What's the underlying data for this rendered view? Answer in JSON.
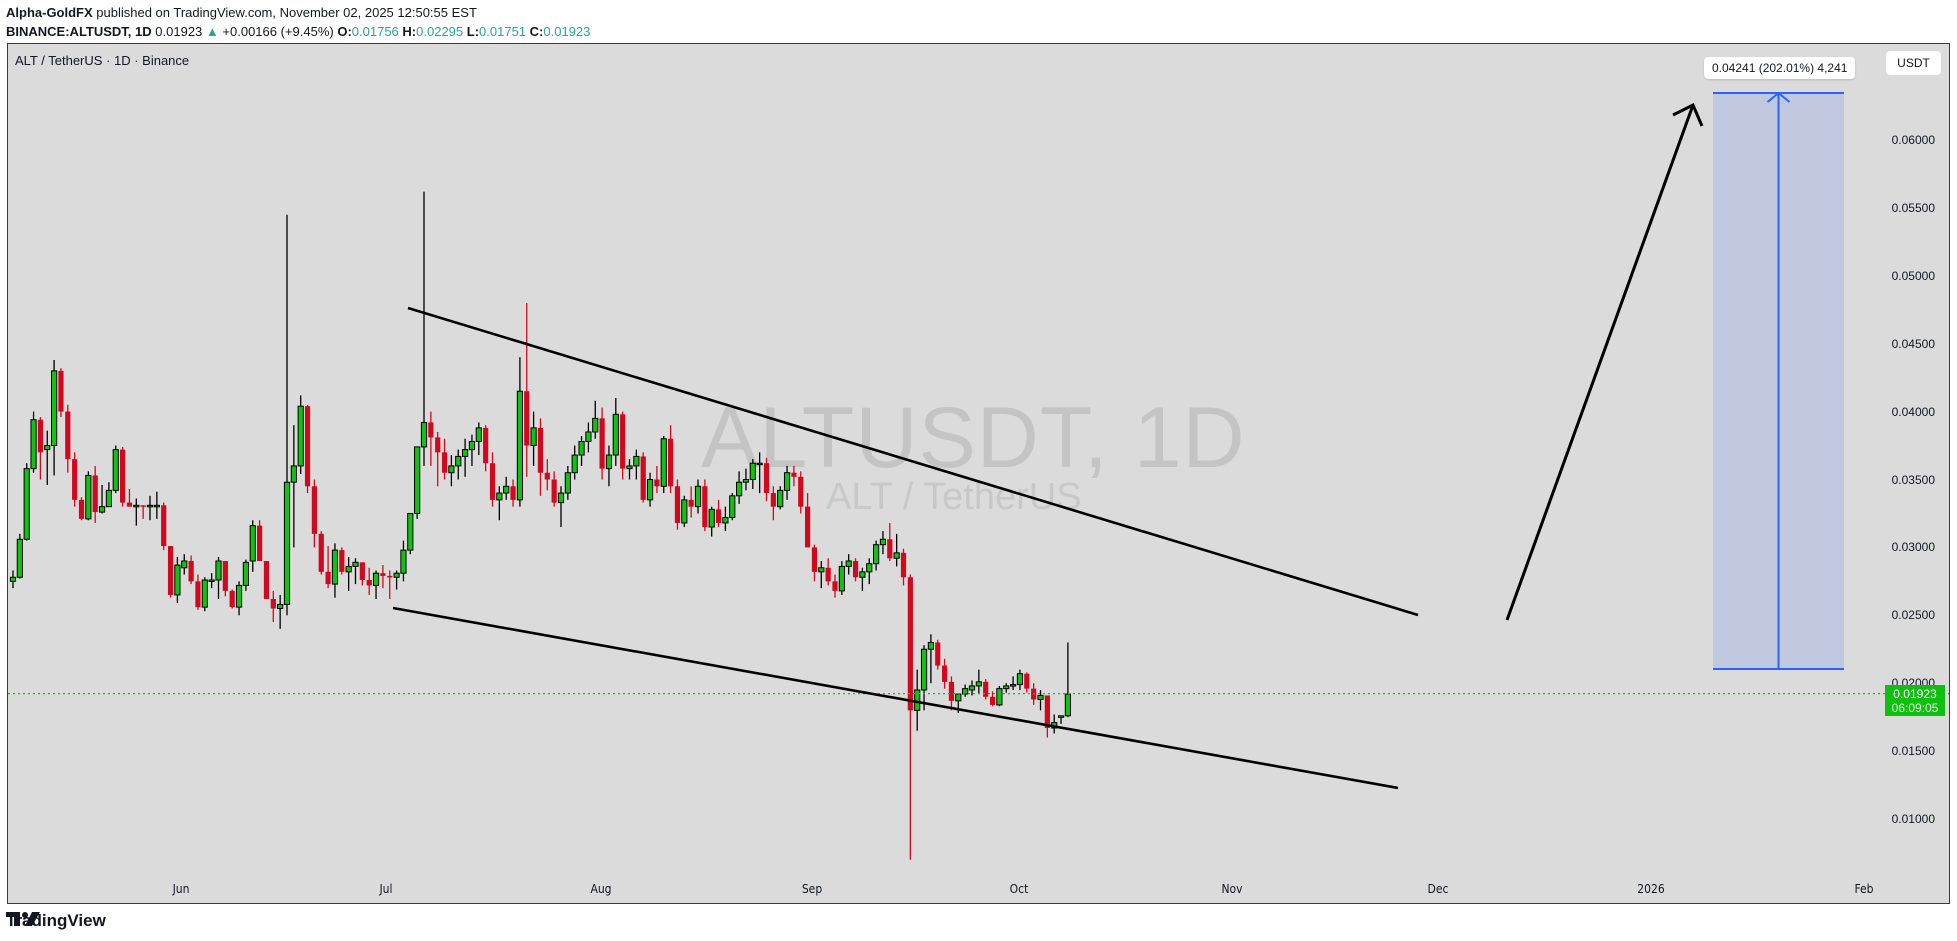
{
  "header": {
    "author": "Alpha-GoldFX",
    "published_text": " published on TradingView.com, November 02, 2025 12:50:55 EST",
    "symbol_line": "BINANCE:ALTUSDT, 1D",
    "last": "0.01923",
    "change_arrow": "▲",
    "change": "+0.00166 (+9.45%)",
    "o_label": "O:",
    "o": "0.01756",
    "h_label": "H:",
    "h": "0.02295",
    "l_label": "L:",
    "l": "0.01751",
    "c_label": "C:",
    "c": "0.01923"
  },
  "chart": {
    "symbol_title": "ALT / TetherUS · 1D · Binance",
    "currency_button": "USDT",
    "watermark_main": "ALTUSDT, 1D",
    "watermark_sub": "ALT / TetherUS",
    "price_tag": {
      "price": "0.01923",
      "countdown": "06:09:05"
    },
    "measure_label": "0.04241 (202.01%) 4,241",
    "colors": {
      "background": "#dbdbdb",
      "up": "#12c212",
      "down": "#d1091e",
      "outline": "#000000",
      "measure_fill": "#c0c8e0",
      "measure_line": "#2962ff",
      "price_line": "#10c010"
    }
  },
  "footer": {
    "brand": "TradingView"
  },
  "chart_data": {
    "type": "candlestick",
    "title": "ALT / TetherUS · 1D · Binance",
    "ylabel": "USDT",
    "xlabel": "",
    "ylim": [
      0.0055,
      0.068
    ],
    "y_ticks": [
      "0.06000",
      "0.05500",
      "0.05000",
      "0.04500",
      "0.04000",
      "0.03500",
      "0.03000",
      "0.02500",
      "0.02000",
      "0.01500",
      "0.01000"
    ],
    "x_ticks": [
      "Jun",
      "Jul",
      "Aug",
      "Sep",
      "Oct",
      "Nov",
      "Dec",
      "2026",
      "Feb"
    ],
    "start_date": "2025-05-07",
    "interval": "1D",
    "ohlc": [
      [
        0.0275,
        0.0283,
        0.027,
        0.0278
      ],
      [
        0.0278,
        0.031,
        0.0277,
        0.0306
      ],
      [
        0.0306,
        0.0362,
        0.0305,
        0.0358
      ],
      [
        0.0358,
        0.04,
        0.0355,
        0.0394
      ],
      [
        0.0394,
        0.0396,
        0.035,
        0.037
      ],
      [
        0.0372,
        0.0386,
        0.0346,
        0.0375
      ],
      [
        0.0375,
        0.0438,
        0.0353,
        0.043
      ],
      [
        0.043,
        0.0432,
        0.0396,
        0.04
      ],
      [
        0.04,
        0.0405,
        0.0355,
        0.0365
      ],
      [
        0.0365,
        0.037,
        0.033,
        0.0335
      ],
      [
        0.0335,
        0.0337,
        0.032,
        0.0321
      ],
      [
        0.0321,
        0.0356,
        0.032,
        0.0353
      ],
      [
        0.0353,
        0.036,
        0.0318,
        0.0326
      ],
      [
        0.0326,
        0.0346,
        0.0325,
        0.033
      ],
      [
        0.033,
        0.0348,
        0.0332,
        0.0342
      ],
      [
        0.0342,
        0.0375,
        0.034,
        0.0372
      ],
      [
        0.0372,
        0.0374,
        0.033,
        0.0333
      ],
      [
        0.0333,
        0.0343,
        0.033,
        0.033
      ],
      [
        0.033,
        0.0336,
        0.0316,
        0.0331
      ],
      [
        0.0331,
        0.0331,
        0.0321,
        0.033
      ],
      [
        0.033,
        0.0338,
        0.032,
        0.0331
      ],
      [
        0.0331,
        0.0341,
        0.0321,
        0.0331
      ],
      [
        0.0331,
        0.0333,
        0.0298,
        0.0301
      ],
      [
        0.0301,
        0.0301,
        0.0263,
        0.0265
      ],
      [
        0.0265,
        0.0293,
        0.0259,
        0.0287
      ],
      [
        0.0285,
        0.0295,
        0.028,
        0.029
      ],
      [
        0.029,
        0.0294,
        0.0273,
        0.0275
      ],
      [
        0.0275,
        0.028,
        0.0254,
        0.0256
      ],
      [
        0.0256,
        0.0278,
        0.0253,
        0.0276
      ],
      [
        0.0276,
        0.0281,
        0.027,
        0.0276
      ],
      [
        0.0276,
        0.0293,
        0.0262,
        0.029
      ],
      [
        0.029,
        0.029,
        0.0264,
        0.0268
      ],
      [
        0.0268,
        0.0269,
        0.0255,
        0.0256
      ],
      [
        0.0256,
        0.0275,
        0.025,
        0.0272
      ],
      [
        0.0272,
        0.0291,
        0.0268,
        0.0289
      ],
      [
        0.029,
        0.032,
        0.0282,
        0.0316
      ],
      [
        0.0316,
        0.032,
        0.029,
        0.029
      ],
      [
        0.029,
        0.028,
        0.0262,
        0.0262
      ],
      [
        0.0262,
        0.0268,
        0.0245,
        0.0255
      ],
      [
        0.0255,
        0.0265,
        0.024,
        0.0258
      ],
      [
        0.0258,
        0.0545,
        0.025,
        0.0348
      ],
      [
        0.0348,
        0.039,
        0.03,
        0.036
      ],
      [
        0.036,
        0.0412,
        0.0354,
        0.0404
      ],
      [
        0.0404,
        0.0405,
        0.034,
        0.0345
      ],
      [
        0.0345,
        0.035,
        0.03,
        0.031
      ],
      [
        0.031,
        0.0312,
        0.028,
        0.0282
      ],
      [
        0.0282,
        0.0301,
        0.027,
        0.0273
      ],
      [
        0.0273,
        0.0303,
        0.0263,
        0.0298
      ],
      [
        0.0298,
        0.03,
        0.028,
        0.0282
      ],
      [
        0.0282,
        0.0293,
        0.0268,
        0.0286
      ],
      [
        0.0286,
        0.0292,
        0.0273,
        0.0289
      ],
      [
        0.0289,
        0.0289,
        0.0272,
        0.0276
      ],
      [
        0.0276,
        0.0285,
        0.0265,
        0.0272
      ],
      [
        0.0272,
        0.0283,
        0.0262,
        0.0281
      ],
      [
        0.0281,
        0.0287,
        0.027,
        0.0279
      ],
      [
        0.0279,
        0.0283,
        0.0262,
        0.0278
      ],
      [
        0.0278,
        0.0283,
        0.0269,
        0.0281
      ],
      [
        0.0281,
        0.0305,
        0.0275,
        0.0298
      ],
      [
        0.0298,
        0.0312,
        0.0295,
        0.0325
      ],
      [
        0.0325,
        0.0342,
        0.0321,
        0.0374
      ],
      [
        0.0374,
        0.0562,
        0.036,
        0.0392
      ],
      [
        0.0392,
        0.04,
        0.036,
        0.0381
      ],
      [
        0.0381,
        0.0385,
        0.0345,
        0.037
      ],
      [
        0.037,
        0.038,
        0.035,
        0.0355
      ],
      [
        0.0355,
        0.0368,
        0.0345,
        0.036
      ],
      [
        0.036,
        0.0372,
        0.035,
        0.0367
      ],
      [
        0.0367,
        0.038,
        0.0352,
        0.0372
      ],
      [
        0.0372,
        0.0383,
        0.036,
        0.0378
      ],
      [
        0.0378,
        0.0392,
        0.0368,
        0.0388
      ],
      [
        0.0388,
        0.039,
        0.0356,
        0.0362
      ],
      [
        0.0362,
        0.037,
        0.033,
        0.0335
      ],
      [
        0.0335,
        0.0345,
        0.032,
        0.034
      ],
      [
        0.034,
        0.0352,
        0.0335,
        0.0345
      ],
      [
        0.0345,
        0.035,
        0.033,
        0.0335
      ],
      [
        0.0335,
        0.044,
        0.033,
        0.0415
      ],
      [
        0.0415,
        0.048,
        0.0352,
        0.0375
      ],
      [
        0.0375,
        0.04,
        0.036,
        0.0388
      ],
      [
        0.0388,
        0.0395,
        0.0338,
        0.0355
      ],
      [
        0.0355,
        0.0365,
        0.0342,
        0.035
      ],
      [
        0.035,
        0.0356,
        0.033,
        0.0333
      ],
      [
        0.0333,
        0.0345,
        0.0315,
        0.034
      ],
      [
        0.034,
        0.036,
        0.0335,
        0.0355
      ],
      [
        0.0355,
        0.0375,
        0.035,
        0.0368
      ],
      [
        0.0368,
        0.0382,
        0.036,
        0.0378
      ],
      [
        0.0378,
        0.0392,
        0.037,
        0.0385
      ],
      [
        0.0385,
        0.0408,
        0.038,
        0.0395
      ],
      [
        0.0395,
        0.0403,
        0.035,
        0.0358
      ],
      [
        0.0358,
        0.0375,
        0.0345,
        0.0368
      ],
      [
        0.0368,
        0.041,
        0.036,
        0.0398
      ],
      [
        0.0398,
        0.04,
        0.035,
        0.0358
      ],
      [
        0.0358,
        0.0365,
        0.035,
        0.036
      ],
      [
        0.036,
        0.0372,
        0.035,
        0.0367
      ],
      [
        0.0367,
        0.037,
        0.0333,
        0.0335
      ],
      [
        0.0335,
        0.0355,
        0.033,
        0.035
      ],
      [
        0.035,
        0.036,
        0.034,
        0.0345
      ],
      [
        0.0345,
        0.0382,
        0.034,
        0.038
      ],
      [
        0.038,
        0.039,
        0.034,
        0.0345
      ],
      [
        0.0345,
        0.035,
        0.0313,
        0.0318
      ],
      [
        0.0318,
        0.0338,
        0.0315,
        0.0335
      ],
      [
        0.0335,
        0.0345,
        0.0322,
        0.033
      ],
      [
        0.033,
        0.035,
        0.0325,
        0.0345
      ],
      [
        0.0345,
        0.035,
        0.0312,
        0.0315
      ],
      [
        0.0315,
        0.033,
        0.0308,
        0.0328
      ],
      [
        0.0328,
        0.0335,
        0.0315,
        0.0318
      ],
      [
        0.0318,
        0.033,
        0.0312,
        0.0322
      ],
      [
        0.0322,
        0.034,
        0.032,
        0.0338
      ],
      [
        0.0338,
        0.0356,
        0.0332,
        0.0348
      ],
      [
        0.0348,
        0.0358,
        0.0342,
        0.035
      ],
      [
        0.035,
        0.0365,
        0.0343,
        0.0362
      ],
      [
        0.0362,
        0.037,
        0.034,
        0.0362
      ],
      [
        0.0362,
        0.0366,
        0.0334,
        0.034
      ],
      [
        0.034,
        0.0345,
        0.032,
        0.033
      ],
      [
        0.033,
        0.0345,
        0.0328,
        0.0342
      ],
      [
        0.0342,
        0.036,
        0.0335,
        0.0355
      ],
      [
        0.0355,
        0.036,
        0.0345,
        0.0352
      ],
      [
        0.0352,
        0.0356,
        0.0325,
        0.033
      ],
      [
        0.033,
        0.034,
        0.031,
        0.03
      ],
      [
        0.03,
        0.0302,
        0.0275,
        0.0282
      ],
      [
        0.0282,
        0.029,
        0.027,
        0.0285
      ],
      [
        0.0285,
        0.0292,
        0.0272,
        0.0275
      ],
      [
        0.0275,
        0.028,
        0.0263,
        0.0268
      ],
      [
        0.0268,
        0.029,
        0.0265,
        0.0286
      ],
      [
        0.0286,
        0.0295,
        0.028,
        0.029
      ],
      [
        0.029,
        0.0292,
        0.0275,
        0.0278
      ],
      [
        0.0278,
        0.0285,
        0.0268,
        0.0282
      ],
      [
        0.0282,
        0.0292,
        0.0273,
        0.0288
      ],
      [
        0.0288,
        0.0305,
        0.0283,
        0.0302
      ],
      [
        0.0302,
        0.0312,
        0.0295,
        0.0306
      ],
      [
        0.0306,
        0.0318,
        0.029,
        0.0292
      ],
      [
        0.0292,
        0.031,
        0.0286,
        0.0296
      ],
      [
        0.0296,
        0.0299,
        0.0272,
        0.0278
      ],
      [
        0.0278,
        0.028,
        0.007,
        0.018
      ],
      [
        0.018,
        0.021,
        0.0165,
        0.0195
      ],
      [
        0.0195,
        0.0228,
        0.018,
        0.0225
      ],
      [
        0.0225,
        0.0236,
        0.02,
        0.023
      ],
      [
        0.023,
        0.0232,
        0.021,
        0.0213
      ],
      [
        0.0213,
        0.0218,
        0.0196,
        0.0201
      ],
      [
        0.0201,
        0.0205,
        0.018,
        0.0187
      ],
      [
        0.0187,
        0.0192,
        0.0178,
        0.0192
      ],
      [
        0.0192,
        0.0199,
        0.019,
        0.0196
      ],
      [
        0.0195,
        0.0202,
        0.0191,
        0.0198
      ],
      [
        0.0198,
        0.021,
        0.0192,
        0.0201
      ],
      [
        0.0201,
        0.0203,
        0.0188,
        0.019
      ],
      [
        0.019,
        0.0194,
        0.0183,
        0.0184
      ],
      [
        0.0184,
        0.0198,
        0.0183,
        0.0196
      ],
      [
        0.0196,
        0.02,
        0.0193,
        0.0198
      ],
      [
        0.0198,
        0.0205,
        0.0195,
        0.0199
      ],
      [
        0.0199,
        0.021,
        0.0195,
        0.0207
      ],
      [
        0.0207,
        0.0208,
        0.0193,
        0.0196
      ],
      [
        0.0196,
        0.02,
        0.0184,
        0.0188
      ],
      [
        0.0188,
        0.0195,
        0.018,
        0.0191
      ],
      [
        0.0191,
        0.019,
        0.016,
        0.0167
      ],
      [
        0.0167,
        0.0177,
        0.0163,
        0.0171
      ],
      [
        0.0175,
        0.0176,
        0.017,
        0.0176
      ],
      [
        0.0176,
        0.023,
        0.0175,
        0.0192
      ]
    ],
    "annotations": {
      "upper_trendline": {
        "from": [
          407,
          307
        ],
        "to": [
          1417,
          614
        ]
      },
      "lower_trendline": {
        "from": [
          392,
          607
        ],
        "to": [
          1397,
          787
        ]
      },
      "projection_arrow": {
        "from": [
          1506,
          619
        ],
        "to": [
          1692,
          104
        ]
      },
      "price_range": {
        "from_price": 0.021,
        "to_price": 0.06341,
        "label": "0.04241 (202.01%) 4,241"
      },
      "last_price_line": 0.01923
    }
  }
}
